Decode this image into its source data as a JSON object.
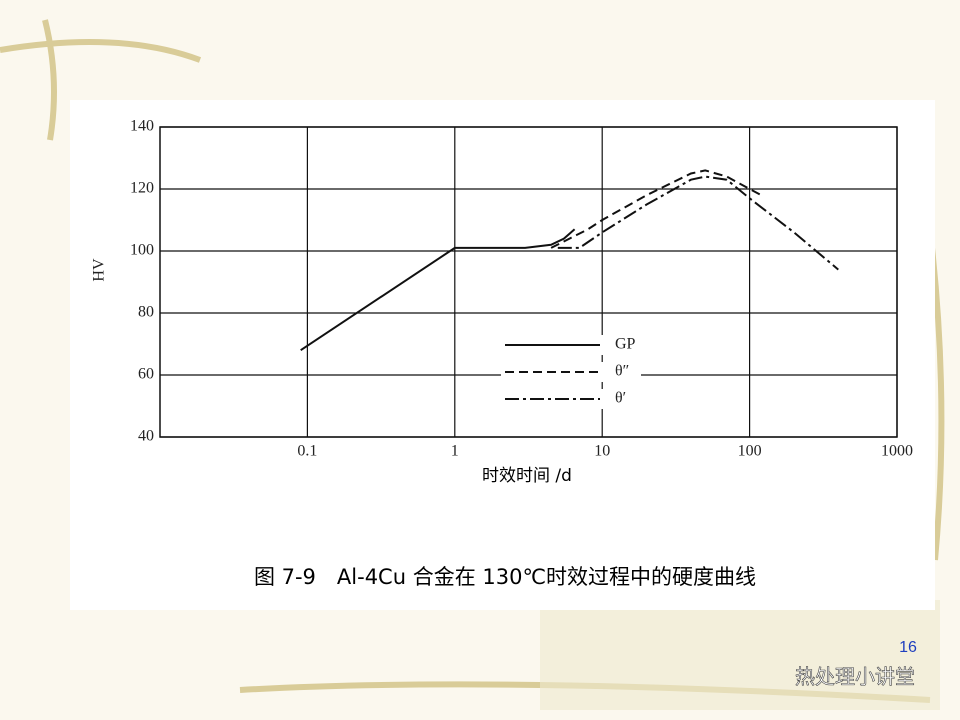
{
  "chart_data": {
    "type": "line",
    "title": "图 7-9　Al-4Cu 合金在 130℃时效过程中的硬度曲线",
    "x_label": "时效时间 /d",
    "y_label": "HV",
    "xscale": "log",
    "xlim": [
      0.01,
      1000
    ],
    "xticks": [
      0.1,
      1,
      10,
      100,
      1000
    ],
    "ylim": [
      40,
      140
    ],
    "yticks": [
      40,
      60,
      80,
      100,
      120,
      140
    ],
    "grid": true,
    "legend": "center",
    "series": [
      {
        "name": "GP",
        "color": "#111111",
        "style": "solid",
        "x": [
          0.09,
          1,
          3,
          4.5,
          5.5,
          6.5
        ],
        "values": [
          68,
          101,
          101,
          102,
          104,
          107
        ]
      },
      {
        "name": "θ″",
        "color": "#111111",
        "style": "dashed",
        "x": [
          4.5,
          6,
          8,
          10,
          20,
          40,
          50,
          70,
          100,
          120
        ],
        "values": [
          101,
          104,
          107,
          110,
          118,
          125,
          126,
          124,
          120,
          118
        ]
      },
      {
        "name": "θ′",
        "color": "#111111",
        "style": "dashdot",
        "x": [
          5,
          7,
          10,
          20,
          40,
          50,
          70,
          100,
          200,
          400
        ],
        "values": [
          101,
          101,
          106,
          115,
          123,
          124,
          123,
          117,
          106,
          94
        ]
      }
    ]
  },
  "page_number": "16",
  "watermark": "热处理小讲堂"
}
